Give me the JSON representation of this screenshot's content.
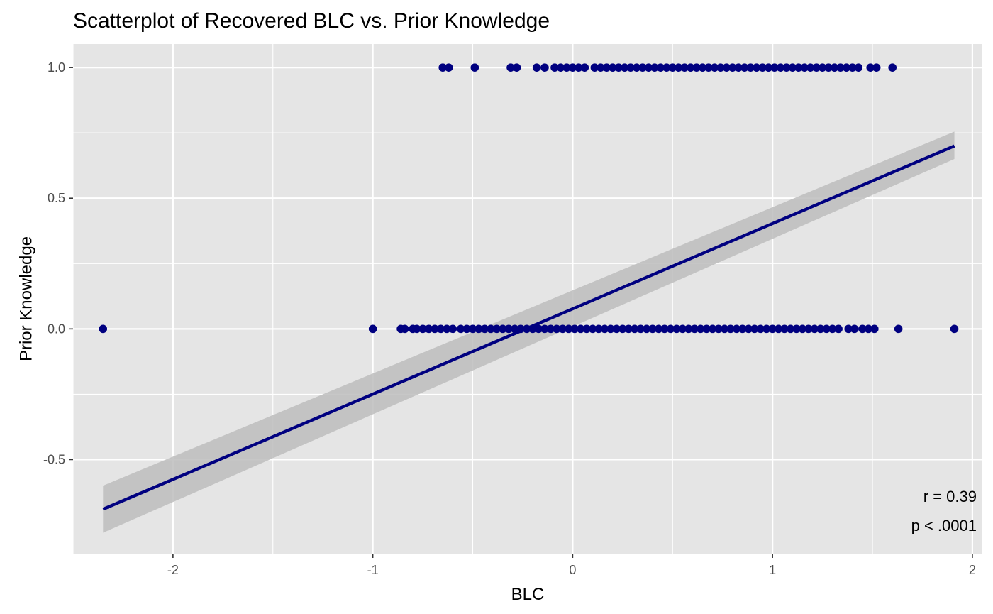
{
  "chart_data": {
    "type": "scatter",
    "title": "Scatterplot of Recovered BLC vs. Prior Knowledge",
    "xlabel": "BLC",
    "ylabel": "Prior Knowledge",
    "xlim": [
      -2.5,
      2.05
    ],
    "ylim": [
      -0.86,
      1.09
    ],
    "x_ticks": [
      -2,
      -1,
      0,
      1,
      2
    ],
    "x_tick_labels": [
      "-2",
      "-1",
      "0",
      "1",
      "2"
    ],
    "y_ticks": [
      -0.5,
      0.0,
      0.5,
      1.0
    ],
    "y_tick_labels": [
      "-0.5",
      "0.0",
      "0.5",
      "1.0"
    ],
    "grid": true,
    "panel_background": "#e5e5e5",
    "grid_color": "#ffffff",
    "point_color": "#000080",
    "line_color": "#000080",
    "ribbon_color": "#bdbdbd",
    "series": [
      {
        "values": [
          {
            "x": -2.35,
            "y": 0
          },
          {
            "x": -1.0,
            "y": 0
          },
          {
            "x": -0.86,
            "y": 0
          },
          {
            "x": -0.84,
            "y": 0
          },
          {
            "x": -0.8,
            "y": 0
          },
          {
            "x": -0.78,
            "y": 0
          },
          {
            "x": -0.75,
            "y": 0
          },
          {
            "x": -0.72,
            "y": 0
          },
          {
            "x": -0.69,
            "y": 0
          },
          {
            "x": -0.66,
            "y": 0
          },
          {
            "x": -0.63,
            "y": 0
          },
          {
            "x": -0.6,
            "y": 0
          },
          {
            "x": -0.56,
            "y": 0
          },
          {
            "x": -0.53,
            "y": 0
          },
          {
            "x": -0.5,
            "y": 0
          },
          {
            "x": -0.47,
            "y": 0
          },
          {
            "x": -0.44,
            "y": 0
          },
          {
            "x": -0.41,
            "y": 0
          },
          {
            "x": -0.38,
            "y": 0
          },
          {
            "x": -0.35,
            "y": 0
          },
          {
            "x": -0.32,
            "y": 0
          },
          {
            "x": -0.29,
            "y": 0
          },
          {
            "x": -0.26,
            "y": 0
          },
          {
            "x": -0.23,
            "y": 0
          },
          {
            "x": -0.2,
            "y": 0
          },
          {
            "x": -0.17,
            "y": 0
          },
          {
            "x": -0.14,
            "y": 0
          },
          {
            "x": -0.11,
            "y": 0
          },
          {
            "x": -0.08,
            "y": 0
          },
          {
            "x": -0.05,
            "y": 0
          },
          {
            "x": -0.02,
            "y": 0
          },
          {
            "x": 0.01,
            "y": 0
          },
          {
            "x": 0.04,
            "y": 0
          },
          {
            "x": 0.07,
            "y": 0
          },
          {
            "x": 0.1,
            "y": 0
          },
          {
            "x": 0.13,
            "y": 0
          },
          {
            "x": 0.16,
            "y": 0
          },
          {
            "x": 0.19,
            "y": 0
          },
          {
            "x": 0.22,
            "y": 0
          },
          {
            "x": 0.25,
            "y": 0
          },
          {
            "x": 0.28,
            "y": 0
          },
          {
            "x": 0.31,
            "y": 0
          },
          {
            "x": 0.34,
            "y": 0
          },
          {
            "x": 0.37,
            "y": 0
          },
          {
            "x": 0.4,
            "y": 0
          },
          {
            "x": 0.43,
            "y": 0
          },
          {
            "x": 0.46,
            "y": 0
          },
          {
            "x": 0.49,
            "y": 0
          },
          {
            "x": 0.52,
            "y": 0
          },
          {
            "x": 0.55,
            "y": 0
          },
          {
            "x": 0.58,
            "y": 0
          },
          {
            "x": 0.61,
            "y": 0
          },
          {
            "x": 0.64,
            "y": 0
          },
          {
            "x": 0.67,
            "y": 0
          },
          {
            "x": 0.7,
            "y": 0
          },
          {
            "x": 0.73,
            "y": 0
          },
          {
            "x": 0.76,
            "y": 0
          },
          {
            "x": 0.79,
            "y": 0
          },
          {
            "x": 0.82,
            "y": 0
          },
          {
            "x": 0.85,
            "y": 0
          },
          {
            "x": 0.88,
            "y": 0
          },
          {
            "x": 0.91,
            "y": 0
          },
          {
            "x": 0.94,
            "y": 0
          },
          {
            "x": 0.97,
            "y": 0
          },
          {
            "x": 1.0,
            "y": 0
          },
          {
            "x": 1.03,
            "y": 0
          },
          {
            "x": 1.06,
            "y": 0
          },
          {
            "x": 1.09,
            "y": 0
          },
          {
            "x": 1.12,
            "y": 0
          },
          {
            "x": 1.15,
            "y": 0
          },
          {
            "x": 1.18,
            "y": 0
          },
          {
            "x": 1.21,
            "y": 0
          },
          {
            "x": 1.24,
            "y": 0
          },
          {
            "x": 1.27,
            "y": 0
          },
          {
            "x": 1.3,
            "y": 0
          },
          {
            "x": 1.33,
            "y": 0
          },
          {
            "x": 1.38,
            "y": 0
          },
          {
            "x": 1.41,
            "y": 0
          },
          {
            "x": 1.45,
            "y": 0
          },
          {
            "x": 1.48,
            "y": 0
          },
          {
            "x": 1.51,
            "y": 0
          },
          {
            "x": 1.63,
            "y": 0
          },
          {
            "x": 1.91,
            "y": 0
          },
          {
            "x": -0.65,
            "y": 1
          },
          {
            "x": -0.62,
            "y": 1
          },
          {
            "x": -0.49,
            "y": 1
          },
          {
            "x": -0.31,
            "y": 1
          },
          {
            "x": -0.28,
            "y": 1
          },
          {
            "x": -0.18,
            "y": 1
          },
          {
            "x": -0.14,
            "y": 1
          },
          {
            "x": -0.09,
            "y": 1
          },
          {
            "x": -0.06,
            "y": 1
          },
          {
            "x": -0.03,
            "y": 1
          },
          {
            "x": 0.0,
            "y": 1
          },
          {
            "x": 0.03,
            "y": 1
          },
          {
            "x": 0.06,
            "y": 1
          },
          {
            "x": 0.11,
            "y": 1
          },
          {
            "x": 0.14,
            "y": 1
          },
          {
            "x": 0.17,
            "y": 1
          },
          {
            "x": 0.2,
            "y": 1
          },
          {
            "x": 0.23,
            "y": 1
          },
          {
            "x": 0.26,
            "y": 1
          },
          {
            "x": 0.29,
            "y": 1
          },
          {
            "x": 0.32,
            "y": 1
          },
          {
            "x": 0.35,
            "y": 1
          },
          {
            "x": 0.38,
            "y": 1
          },
          {
            "x": 0.41,
            "y": 1
          },
          {
            "x": 0.44,
            "y": 1
          },
          {
            "x": 0.47,
            "y": 1
          },
          {
            "x": 0.5,
            "y": 1
          },
          {
            "x": 0.53,
            "y": 1
          },
          {
            "x": 0.56,
            "y": 1
          },
          {
            "x": 0.59,
            "y": 1
          },
          {
            "x": 0.62,
            "y": 1
          },
          {
            "x": 0.65,
            "y": 1
          },
          {
            "x": 0.68,
            "y": 1
          },
          {
            "x": 0.71,
            "y": 1
          },
          {
            "x": 0.74,
            "y": 1
          },
          {
            "x": 0.77,
            "y": 1
          },
          {
            "x": 0.8,
            "y": 1
          },
          {
            "x": 0.83,
            "y": 1
          },
          {
            "x": 0.86,
            "y": 1
          },
          {
            "x": 0.89,
            "y": 1
          },
          {
            "x": 0.92,
            "y": 1
          },
          {
            "x": 0.95,
            "y": 1
          },
          {
            "x": 0.98,
            "y": 1
          },
          {
            "x": 1.01,
            "y": 1
          },
          {
            "x": 1.04,
            "y": 1
          },
          {
            "x": 1.07,
            "y": 1
          },
          {
            "x": 1.1,
            "y": 1
          },
          {
            "x": 1.13,
            "y": 1
          },
          {
            "x": 1.16,
            "y": 1
          },
          {
            "x": 1.19,
            "y": 1
          },
          {
            "x": 1.22,
            "y": 1
          },
          {
            "x": 1.25,
            "y": 1
          },
          {
            "x": 1.28,
            "y": 1
          },
          {
            "x": 1.31,
            "y": 1
          },
          {
            "x": 1.34,
            "y": 1
          },
          {
            "x": 1.37,
            "y": 1
          },
          {
            "x": 1.4,
            "y": 1
          },
          {
            "x": 1.43,
            "y": 1
          },
          {
            "x": 1.49,
            "y": 1
          },
          {
            "x": 1.52,
            "y": 1
          },
          {
            "x": 1.6,
            "y": 1
          }
        ]
      }
    ],
    "fit_line": {
      "x": [
        -2.35,
        1.91
      ],
      "y": [
        -0.69,
        0.7
      ],
      "ci_lower": [
        -0.78,
        0.65
      ],
      "ci_upper": [
        -0.6,
        0.755
      ]
    },
    "annotations": [
      "r = 0.39",
      "p < .0001"
    ]
  }
}
